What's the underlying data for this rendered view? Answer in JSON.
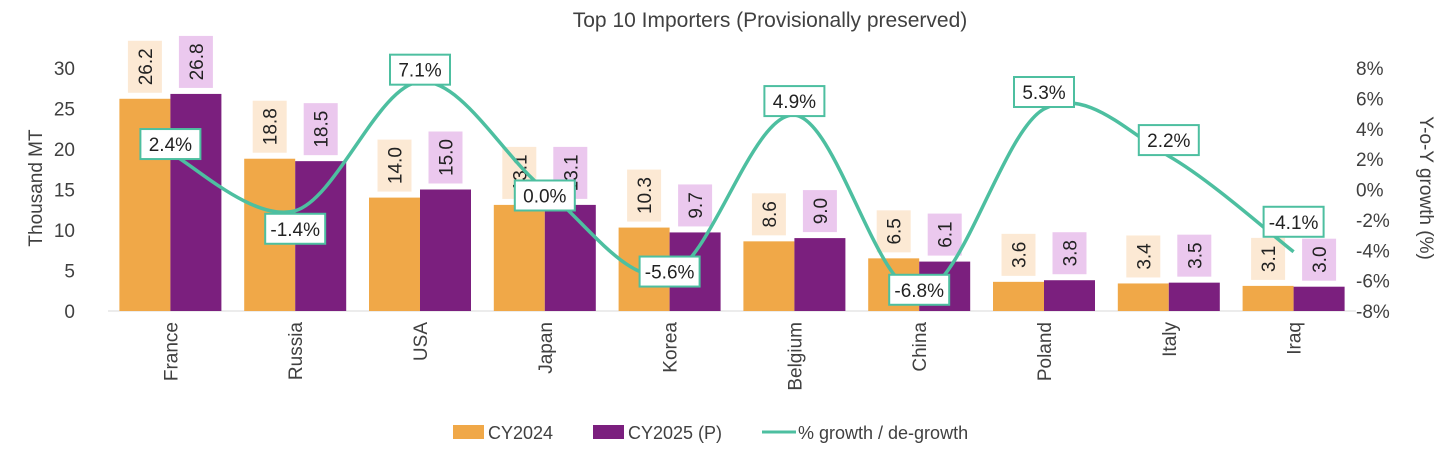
{
  "chart_data": {
    "type": "bar",
    "title": "Top 10 Importers (Provisionally preserved)",
    "ylabel": "Thousand MT",
    "y2label": "Y-o-Y growth (%)",
    "categories": [
      "France",
      "Russia",
      "USA",
      "Japan",
      "Korea",
      "Belgium",
      "China",
      "Poland",
      "Italy",
      "Iraq"
    ],
    "series": [
      {
        "name": "CY2024",
        "type": "bar",
        "axis": "left",
        "color": "#F0A848",
        "values": [
          26.2,
          18.8,
          14.0,
          13.1,
          10.3,
          8.6,
          6.5,
          3.6,
          3.4,
          3.1
        ],
        "labels": [
          "26.2",
          "18.8",
          "14.0",
          "13.1",
          "10.3",
          "8.6",
          "6.5",
          "3.6",
          "3.4",
          "3.1"
        ]
      },
      {
        "name": "CY2025 (P)",
        "type": "bar",
        "axis": "right_none",
        "color": "#7B1F7E",
        "values": [
          26.8,
          18.5,
          15.0,
          13.1,
          9.7,
          9.0,
          6.1,
          3.8,
          3.5,
          3.0
        ],
        "labels": [
          "26.8",
          "18.5",
          "15.0",
          "13.1",
          "9.7",
          "9.0",
          "6.1",
          "3.8",
          "3.5",
          "3.0"
        ]
      },
      {
        "name": "% growth / de-growth",
        "type": "line",
        "axis": "right",
        "color": "#4DBFA0",
        "values": [
          2.4,
          -1.4,
          7.1,
          0.0,
          -5.6,
          4.9,
          -6.8,
          5.3,
          2.2,
          -4.1
        ],
        "labels": [
          "2.4%",
          "-1.4%",
          "7.1%",
          "0.0%",
          "-5.6%",
          "4.9%",
          "-6.8%",
          "5.3%",
          "2.2%",
          "-4.1%"
        ]
      }
    ],
    "ylim": [
      0,
      30
    ],
    "yticks": [
      "0",
      "5",
      "10",
      "15",
      "20",
      "25",
      "30"
    ],
    "y2lim": [
      -8,
      8
    ],
    "y2ticks": [
      "-8%",
      "-6%",
      "-4%",
      "-2%",
      "0%",
      "2%",
      "4%",
      "6%",
      "8%"
    ],
    "grid": false,
    "legend": "bottom",
    "colors": {
      "cy2024_label_bg": "#FCE9D4",
      "cy2025_label_bg": "#EBC8EE",
      "growth_box_border": "#4DBFA0",
      "axis_text": "#404040"
    }
  }
}
